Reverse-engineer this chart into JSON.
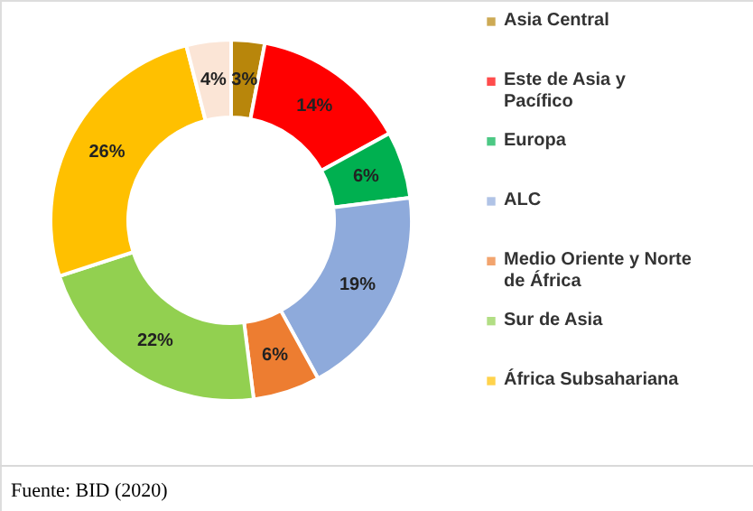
{
  "chart_data": {
    "type": "donut",
    "categories": [
      "Asia Central",
      "Este de Asia y Pacífico",
      "Europa",
      "ALC",
      "Medio Oriente y Norte de África",
      "Sur de Asia",
      "África Subsahariana",
      null
    ],
    "values": [
      3,
      14,
      6,
      19,
      6,
      22,
      26,
      4
    ],
    "value_labels": [
      "3%",
      "14%",
      "6%",
      "19%",
      "6%",
      "22%",
      "26%",
      "4%"
    ],
    "colors": [
      "#b8860b",
      "#ff0000",
      "#00b050",
      "#8eaadb",
      "#ed7d31",
      "#92d050",
      "#ffc000",
      "#fbe5d6"
    ],
    "legend": "right",
    "annotations": [
      "Fuente: BID (2020)"
    ]
  }
}
